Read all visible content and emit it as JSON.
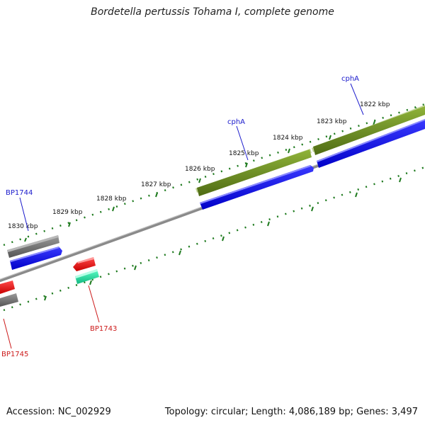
{
  "title": "Bordetella pertussis Tohama I, complete genome",
  "footer": {
    "accession": "Accession: NC_002929",
    "summary": "Topology: circular; Length: 4,086,189 bp; Genes: 3,497"
  },
  "colors": {
    "background": "#ffffff",
    "backbone": "#8c8c8c",
    "tick": "#1e7a1e",
    "forward_cds": "#0a0aee",
    "reverse_cds": "#ee0a0a",
    "gene_gray": "#6e6e6e",
    "gene_olive": "#6b8e23",
    "gene_teal": "#1fe8a6",
    "label_blue": "#1a1acc",
    "label_red": "#cc1a1a"
  },
  "scale_labels": [
    "1830 kbp",
    "1829 kbp",
    "1828 kbp",
    "1827 kbp",
    "1826 kbp",
    "1825 kbp",
    "1824 kbp",
    "1823 kbp",
    "1822 kbp"
  ],
  "gene_labels": [
    {
      "name": "cphA",
      "strand": "forward"
    },
    {
      "name": "cphA",
      "strand": "forward"
    },
    {
      "name": "BP1744",
      "strand": "forward"
    },
    {
      "name": "BP1743",
      "strand": "reverse"
    },
    {
      "name": "BP1745",
      "strand": "reverse"
    }
  ]
}
